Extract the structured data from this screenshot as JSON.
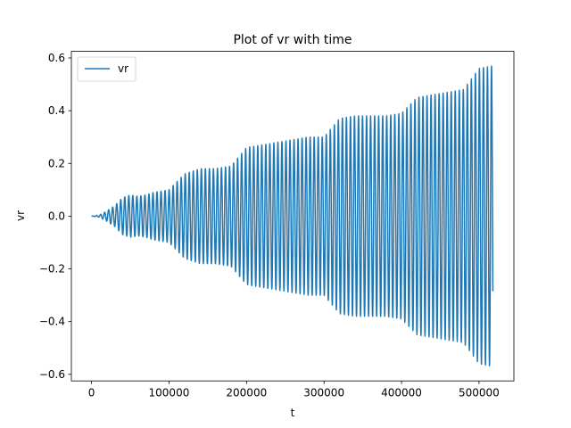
{
  "chart_data": {
    "type": "line",
    "title": "Plot of vr with time",
    "xlabel": "t",
    "ylabel": "vr",
    "xlim": [
      -26000,
      545000
    ],
    "ylim": [
      -0.625,
      0.625
    ],
    "xticks": [
      0,
      100000,
      200000,
      300000,
      400000,
      500000
    ],
    "xtick_labels": [
      "0",
      "100000",
      "200000",
      "300000",
      "400000",
      "500000"
    ],
    "yticks": [
      -0.6,
      -0.4,
      -0.2,
      0.0,
      0.2,
      0.4,
      0.6
    ],
    "ytick_labels": [
      "−0.6",
      "−0.4",
      "−0.2",
      "0.0",
      "0.2",
      "0.4",
      "0.6"
    ],
    "grid": false,
    "legend": {
      "placement": "top-left",
      "entries": [
        "vr"
      ]
    },
    "colors": {
      "series": "#1f77b4"
    },
    "series": [
      {
        "name": "vr",
        "oscillation_period": 5200,
        "envelope": {
          "x": [
            0,
            10000,
            20000,
            30000,
            40000,
            50000,
            60000,
            70000,
            80000,
            90000,
            100000,
            120000,
            140000,
            160000,
            180000,
            200000,
            220000,
            240000,
            260000,
            280000,
            300000,
            320000,
            340000,
            360000,
            380000,
            400000,
            420000,
            440000,
            460000,
            480000,
            500000,
            518000
          ],
          "amplitude": [
            0.0,
            0.004,
            0.02,
            0.04,
            0.07,
            0.08,
            0.075,
            0.08,
            0.09,
            0.095,
            0.1,
            0.16,
            0.18,
            0.18,
            0.19,
            0.26,
            0.27,
            0.28,
            0.29,
            0.3,
            0.3,
            0.37,
            0.38,
            0.38,
            0.38,
            0.39,
            0.45,
            0.46,
            0.47,
            0.48,
            0.56,
            0.57
          ]
        }
      }
    ]
  }
}
